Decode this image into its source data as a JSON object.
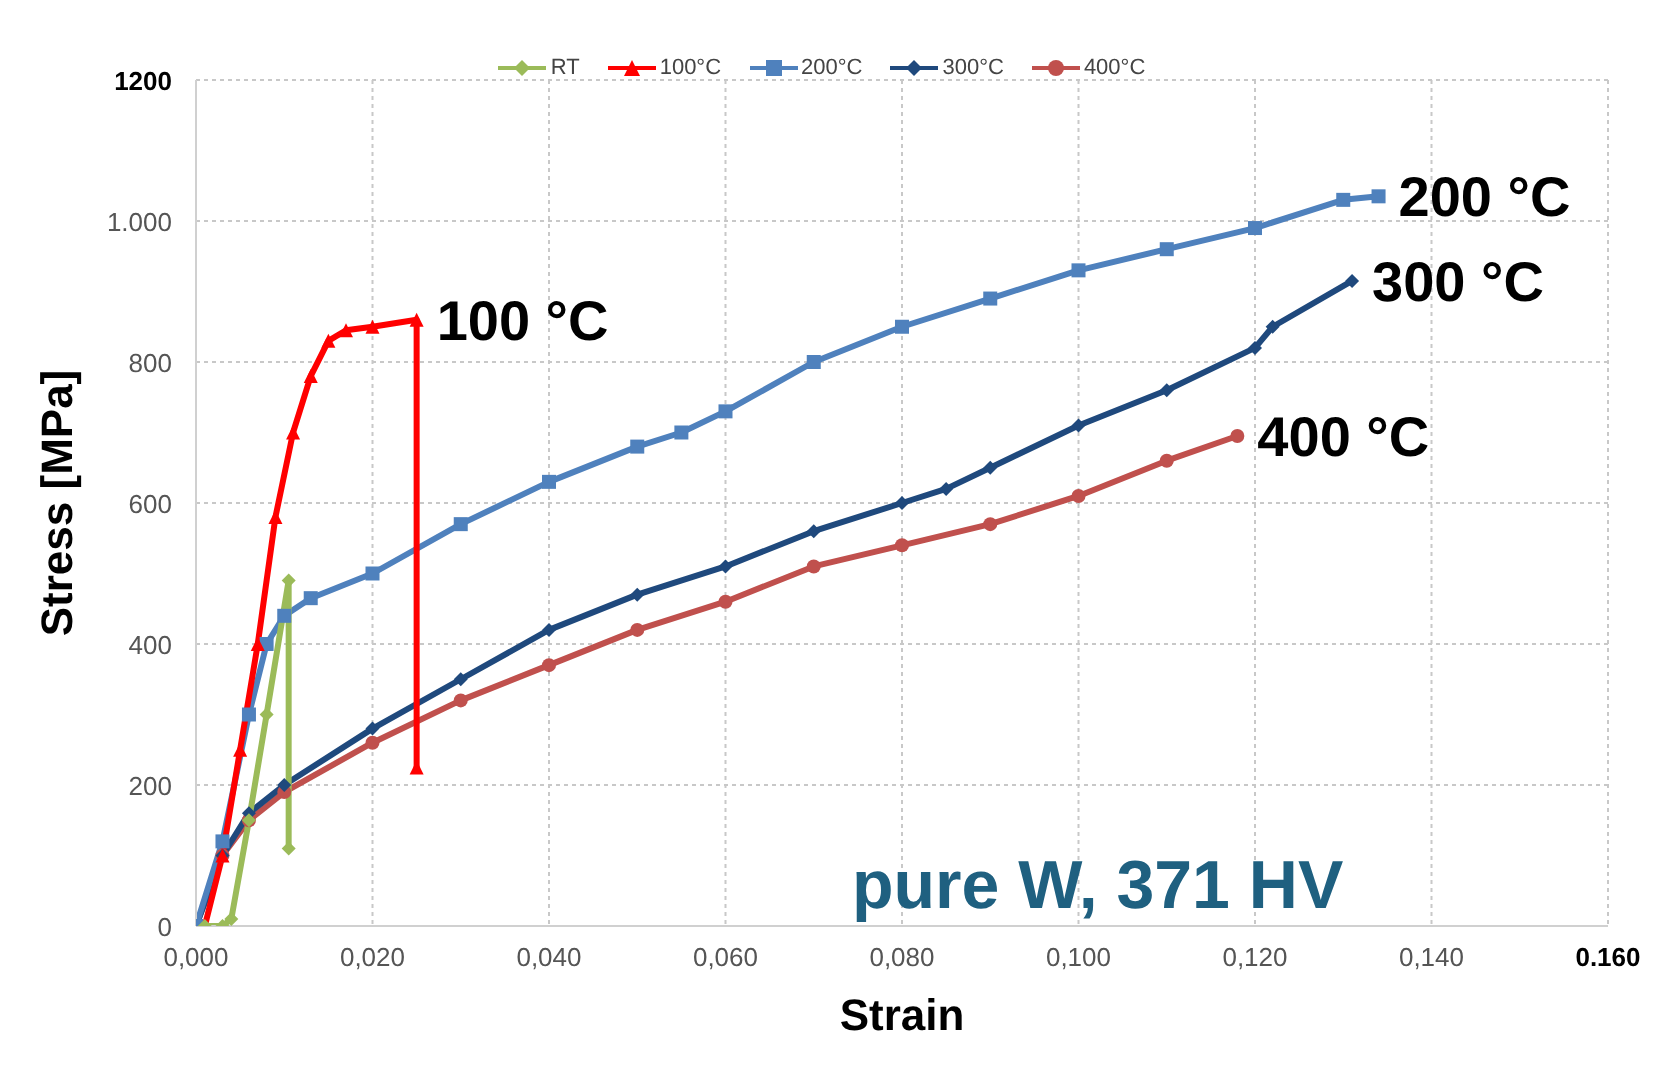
{
  "chart_data": {
    "type": "line",
    "xlabel": "Strain",
    "ylabel": "Stress [MPa]",
    "xlim": [
      0,
      0.16
    ],
    "xticks": [
      {
        "value": 0,
        "label": "0,000"
      },
      {
        "value": 0.02,
        "label": "0,020"
      },
      {
        "value": 0.04,
        "label": "0,040"
      },
      {
        "value": 0.06,
        "label": "0,060"
      },
      {
        "value": 0.08,
        "label": "0,080"
      },
      {
        "value": 0.1,
        "label": "0,100"
      },
      {
        "value": 0.12,
        "label": "0,120"
      },
      {
        "value": 0.14,
        "label": "0,140"
      },
      {
        "value": 0.16,
        "label": "0.160"
      }
    ],
    "ylim": [
      0,
      1200
    ],
    "yticks": [
      0,
      200,
      400,
      600,
      800,
      {
        "value": 1000,
        "label": "1.000"
      },
      1200
    ],
    "grid": true,
    "legend": "top",
    "line_style": "solid",
    "series": [
      {
        "name": "RT",
        "color": "#9bbb59",
        "marker": "diamond",
        "x": [
          0.001,
          0.003,
          0.004,
          0.006,
          0.008,
          0.0105,
          0.0105
        ],
        "values": [
          0,
          0,
          10,
          150,
          300,
          490,
          110
        ]
      },
      {
        "name": "100°C",
        "color": "#ff0000",
        "marker": "triangle",
        "x": [
          0.001,
          0.003,
          0.005,
          0.007,
          0.009,
          0.011,
          0.013,
          0.015,
          0.017,
          0.02,
          0.025,
          0.025
        ],
        "values": [
          0,
          100,
          250,
          400,
          580,
          700,
          780,
          830,
          845,
          850,
          860,
          225
        ]
      },
      {
        "name": "200°C",
        "color": "#4f81bd",
        "marker": "square",
        "x": [
          0,
          0.003,
          0.006,
          0.008,
          0.01,
          0.013,
          0.02,
          0.03,
          0.04,
          0.05,
          0.055,
          0.06,
          0.07,
          0.08,
          0.09,
          0.1,
          0.11,
          0.12,
          0.13,
          0.134
        ],
        "values": [
          0,
          120,
          300,
          400,
          440,
          465,
          500,
          570,
          630,
          680,
          700,
          730,
          800,
          850,
          890,
          930,
          960,
          990,
          1030,
          1035
        ]
      },
      {
        "name": "300°C",
        "color": "#1f497d",
        "marker": "diamond",
        "x": [
          0,
          0.003,
          0.006,
          0.01,
          0.02,
          0.03,
          0.04,
          0.05,
          0.06,
          0.07,
          0.08,
          0.085,
          0.09,
          0.1,
          0.11,
          0.12,
          0.122,
          0.131
        ],
        "values": [
          0,
          100,
          160,
          200,
          280,
          350,
          420,
          470,
          510,
          560,
          600,
          620,
          650,
          710,
          760,
          820,
          850,
          915
        ]
      },
      {
        "name": "400°C",
        "color": "#c0504d",
        "marker": "circle",
        "x": [
          0,
          0.003,
          0.006,
          0.01,
          0.02,
          0.03,
          0.04,
          0.05,
          0.06,
          0.07,
          0.08,
          0.09,
          0.1,
          0.11,
          0.118
        ],
        "values": [
          0,
          100,
          150,
          190,
          260,
          320,
          370,
          420,
          460,
          510,
          540,
          570,
          610,
          660,
          695
        ]
      }
    ],
    "annotations": [
      {
        "text": "100 °C",
        "x": 0.025,
        "y": 860
      },
      {
        "text": "200 °C",
        "x": 0.134,
        "y": 1035
      },
      {
        "text": "300 °C",
        "x": 0.131,
        "y": 915
      },
      {
        "text": "400 °C",
        "x": 0.118,
        "y": 695
      },
      "pure W, 371 HV"
    ]
  }
}
